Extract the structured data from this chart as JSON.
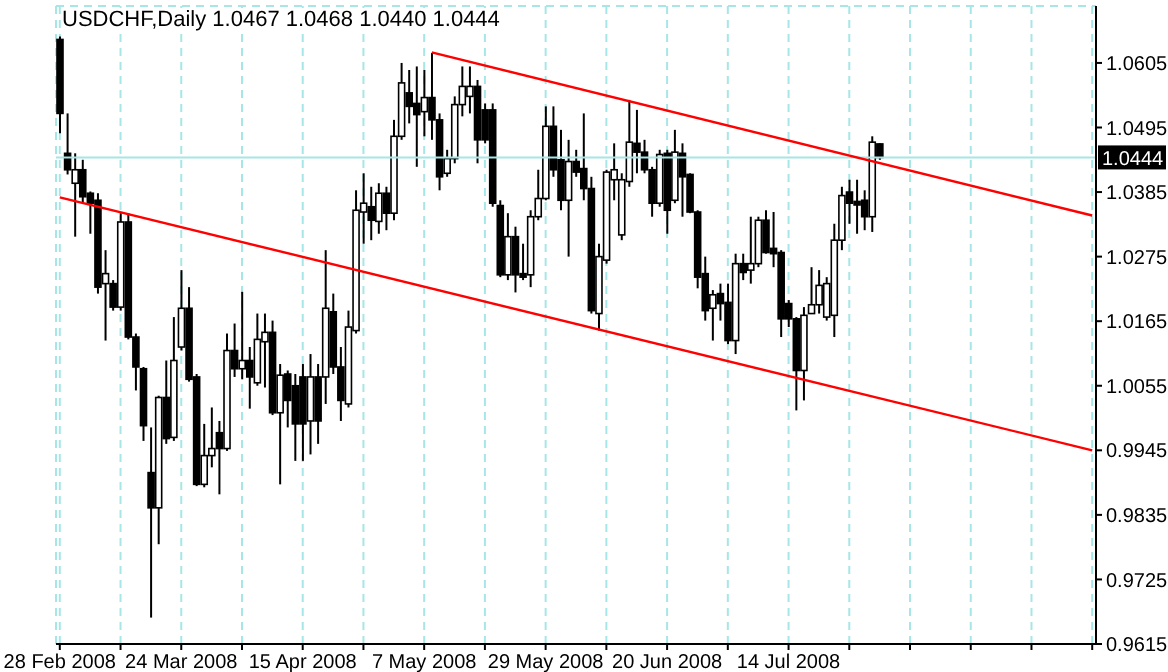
{
  "chart_data": {
    "type": "candlestick",
    "title": "USDCHF,Daily 1.0467 1.0468 1.0440 1.0444",
    "categories": [
      "28 Feb 2008",
      null,
      null,
      null,
      null,
      null,
      null,
      null,
      null,
      null,
      null,
      null,
      null,
      null,
      null,
      null,
      "24 Mar 2008",
      null,
      null,
      null,
      null,
      null,
      null,
      null,
      null,
      null,
      null,
      null,
      null,
      null,
      null,
      null,
      "15 Apr 2008",
      null,
      null,
      null,
      null,
      null,
      null,
      null,
      null,
      null,
      null,
      null,
      null,
      null,
      null,
      null,
      "7 May 2008",
      null,
      null,
      null,
      null,
      null,
      null,
      null,
      null,
      null,
      null,
      null,
      null,
      null,
      null,
      null,
      "29 May 2008",
      null,
      null,
      null,
      null,
      null,
      null,
      null,
      null,
      null,
      null,
      null,
      null,
      null,
      null,
      null,
      "20 Jun 2008",
      null,
      null,
      null,
      null,
      null,
      null,
      null,
      null,
      null,
      null,
      null,
      null,
      null,
      null,
      null,
      "14 Jul 2008",
      null,
      null,
      null,
      null,
      null,
      null,
      null,
      null,
      null,
      null,
      null,
      null,
      null,
      null,
      null,
      null,
      null,
      null,
      null,
      null,
      null,
      null,
      null,
      null,
      null,
      null,
      null,
      null,
      null,
      null,
      null,
      null,
      null,
      null,
      null,
      null,
      null,
      null,
      null,
      null
    ],
    "ohlc": [
      [
        1.0645,
        1.065,
        1.0485,
        1.0519
      ],
      [
        1.0451,
        1.0519,
        1.0415,
        1.0423
      ],
      [
        1.04,
        1.0451,
        1.0309,
        1.0423
      ],
      [
        1.0423,
        1.044,
        1.0366,
        1.0377
      ],
      [
        1.0383,
        1.0386,
        1.0314,
        1.0366
      ],
      [
        1.0371,
        1.0383,
        1.0212,
        1.0223
      ],
      [
        1.0229,
        1.0286,
        1.0132,
        1.0246
      ],
      [
        1.0229,
        1.0235,
        1.0183,
        1.0189
      ],
      [
        1.0189,
        1.0349,
        1.0183,
        1.0334
      ],
      [
        1.0334,
        1.0349,
        1.0134,
        1.0138
      ],
      [
        1.0138,
        1.0144,
        1.0047,
        1.0087
      ],
      [
        1.0084,
        1.0087,
        0.9961,
        0.9987
      ],
      [
        0.9907,
        0.9984,
        0.966,
        0.9847
      ],
      [
        0.9847,
        1.0038,
        0.9785,
        1.0035
      ],
      [
        1.0035,
        1.0098,
        0.9956,
        0.9965
      ],
      [
        0.9967,
        1.0172,
        0.9961,
        1.0098
      ],
      [
        1.0121,
        1.0252,
        1.0115,
        1.0187
      ],
      [
        1.0187,
        1.0223,
        1.0062,
        1.0066
      ],
      [
        1.007,
        1.0075,
        0.9884,
        0.9887
      ],
      [
        0.9887,
        0.999,
        0.9882,
        0.9936
      ],
      [
        0.9936,
        1.0018,
        0.9916,
        0.9948
      ],
      [
        0.9975,
        0.9995,
        0.987,
        0.9948
      ],
      [
        0.9948,
        1.0144,
        0.9944,
        1.0115
      ],
      [
        1.0115,
        1.0161,
        1.007,
        1.0084
      ],
      [
        1.0084,
        1.0215,
        1.0066,
        1.0098
      ],
      [
        1.0098,
        1.0121,
        1.0016,
        1.007
      ],
      [
        1.006,
        1.0178,
        1.0055,
        1.0134
      ],
      [
        1.013,
        1.0178,
        1.0052,
        1.0146
      ],
      [
        1.0146,
        1.0166,
        1.0005,
        1.0009
      ],
      [
        1.0009,
        1.0092,
        0.9887,
        1.0073
      ],
      [
        1.0075,
        1.0081,
        0.9984,
        1.003
      ],
      [
        1.0055,
        1.0075,
        0.9927,
        0.999
      ],
      [
        1.007,
        1.0092,
        0.9927,
        0.999
      ],
      [
        0.9995,
        1.0109,
        0.9938,
        1.007
      ],
      [
        1.007,
        1.0092,
        0.9956,
        0.9995
      ],
      [
        1.007,
        1.0286,
        1.0024,
        1.0187
      ],
      [
        1.0181,
        1.0212,
        1.0075,
        1.0087
      ],
      [
        1.0087,
        1.0121,
        0.9995,
        1.003
      ],
      [
        1.0024,
        1.0183,
        1.0018,
        1.0155
      ],
      [
        1.0149,
        1.0388,
        1.0144,
        1.0354
      ],
      [
        1.0351,
        1.0417,
        1.0297,
        1.0366
      ],
      [
        1.036,
        1.0394,
        1.0303,
        1.0337
      ],
      [
        1.0335,
        1.04,
        1.0314,
        1.0383
      ],
      [
        1.0383,
        1.0394,
        1.032,
        1.0349
      ],
      [
        1.0349,
        1.0508,
        1.0337,
        1.048
      ],
      [
        1.048,
        1.0605,
        1.0474,
        1.0571
      ],
      [
        1.0554,
        1.0593,
        1.0502,
        1.0531
      ],
      [
        1.0536,
        1.0599,
        1.0428,
        1.0517
      ],
      [
        1.0522,
        1.0593,
        1.048,
        1.0546
      ],
      [
        1.0546,
        1.0622,
        1.0474,
        1.0508
      ],
      [
        1.0508,
        1.0519,
        1.0388,
        1.0411
      ],
      [
        1.0417,
        1.0457,
        1.0411,
        1.0442
      ],
      [
        1.0442,
        1.0548,
        1.0434,
        1.0534
      ],
      [
        1.0534,
        1.0599,
        1.0514,
        1.0565
      ],
      [
        1.0548,
        1.0599,
        1.0519,
        1.0565
      ],
      [
        1.0565,
        1.0576,
        1.0434,
        1.0474
      ],
      [
        1.0525,
        1.0536,
        1.0468,
        1.0474
      ],
      [
        1.0525,
        1.0536,
        1.036,
        1.0366
      ],
      [
        1.0362,
        1.0371,
        1.024,
        1.0244
      ],
      [
        1.0244,
        1.0349,
        1.0235,
        1.0309
      ],
      [
        1.0309,
        1.0326,
        1.0214,
        1.0244
      ],
      [
        1.0246,
        1.0297,
        1.0235,
        1.024
      ],
      [
        1.0244,
        1.0354,
        1.0223,
        1.0343
      ],
      [
        1.0343,
        1.0423,
        1.0337,
        1.0374
      ],
      [
        1.0374,
        1.0531,
        1.0371,
        1.0497
      ],
      [
        1.0497,
        1.0531,
        1.0411,
        1.0423
      ],
      [
        1.044,
        1.0491,
        1.0354,
        1.0371
      ],
      [
        1.0371,
        1.0474,
        1.0275,
        1.0437
      ],
      [
        1.0437,
        1.0457,
        1.0411,
        1.0419
      ],
      [
        1.0425,
        1.0519,
        1.0371,
        1.0391
      ],
      [
        1.0391,
        1.0411,
        1.0178,
        1.0183
      ],
      [
        1.0178,
        1.0297,
        1.0149,
        1.0275
      ],
      [
        1.0269,
        1.0423,
        1.0263,
        1.0419
      ],
      [
        1.0406,
        1.0468,
        1.0371,
        1.0423
      ],
      [
        1.0312,
        1.0417,
        1.0303,
        1.0406
      ],
      [
        1.0403,
        1.0542,
        1.0394,
        1.047
      ],
      [
        1.0468,
        1.0525,
        1.0417,
        1.0453
      ],
      [
        1.0453,
        1.0474,
        1.0417,
        1.0423
      ],
      [
        1.0423,
        1.0428,
        1.0343,
        1.0366
      ],
      [
        1.0366,
        1.0457,
        1.036,
        1.0449
      ],
      [
        1.0451,
        1.0457,
        1.0314,
        1.0354
      ],
      [
        1.0371,
        1.0491,
        1.0366,
        1.0453
      ],
      [
        1.0451,
        1.0468,
        1.0343,
        1.0411
      ],
      [
        1.0415,
        1.0417,
        1.0349,
        1.0351
      ],
      [
        1.0351,
        1.0354,
        1.0221,
        1.024
      ],
      [
        1.0246,
        1.0275,
        1.0166,
        1.0183
      ],
      [
        1.0187,
        1.0218,
        1.0132,
        1.021
      ],
      [
        1.0212,
        1.0229,
        1.0166,
        1.0195
      ],
      [
        1.0197,
        1.0229,
        1.0126,
        1.0132
      ],
      [
        1.0132,
        1.028,
        1.0109,
        1.0263
      ],
      [
        1.0263,
        1.028,
        1.0235,
        1.0248
      ],
      [
        1.0252,
        1.0343,
        1.0229,
        1.0263
      ],
      [
        1.0263,
        1.0343,
        1.0257,
        1.0337
      ],
      [
        1.0337,
        1.0354,
        1.028,
        1.0282
      ],
      [
        1.0289,
        1.0351,
        1.0257,
        1.028
      ],
      [
        1.0282,
        1.0286,
        1.0138,
        1.0169
      ],
      [
        1.0195,
        1.0201,
        1.0155,
        1.0169
      ],
      [
        1.0169,
        1.0172,
        1.0013,
        1.0081
      ],
      [
        1.0081,
        1.0189,
        1.003,
        1.0175
      ],
      [
        1.0178,
        1.0257,
        1.0178,
        1.0193
      ],
      [
        1.0193,
        1.0252,
        1.0178,
        1.0226
      ],
      [
        1.0172,
        1.024,
        1.0166,
        1.0229
      ],
      [
        1.0175,
        1.0331,
        1.0138,
        1.0303
      ],
      [
        1.0303,
        1.0394,
        1.0286,
        1.0379
      ],
      [
        1.0385,
        1.0406,
        1.0331,
        1.0366
      ],
      [
        1.0369,
        1.0406,
        1.0314,
        1.0363
      ],
      [
        1.0371,
        1.0388,
        1.032,
        1.0343
      ],
      [
        1.0343,
        1.048,
        1.0317,
        1.047
      ],
      [
        1.0467,
        1.0468,
        1.044,
        1.0444
      ],
      null,
      null,
      null,
      null,
      null,
      null,
      null,
      null,
      null,
      null,
      null,
      null,
      null,
      null,
      null,
      null,
      null,
      null,
      null,
      null,
      null,
      null,
      null,
      null,
      null,
      null,
      null,
      null
    ],
    "series": [
      {
        "type": "line",
        "color": "#ff0000",
        "values": [
          1.0376,
          null,
          null,
          null,
          null,
          null,
          null,
          null,
          null,
          null,
          null,
          null,
          null,
          null,
          null,
          null,
          null,
          null,
          null,
          null,
          null,
          null,
          null,
          null,
          null,
          null,
          null,
          null,
          null,
          null,
          null,
          null,
          null,
          null,
          null,
          null,
          null,
          null,
          null,
          null,
          null,
          null,
          null,
          null,
          null,
          null,
          null,
          null,
          null,
          null,
          null,
          null,
          null,
          null,
          null,
          null,
          null,
          null,
          null,
          null,
          null,
          null,
          null,
          null,
          null,
          null,
          null,
          null,
          null,
          null,
          null,
          null,
          null,
          null,
          null,
          null,
          null,
          null,
          null,
          null,
          null,
          null,
          null,
          null,
          null,
          null,
          null,
          null,
          null,
          null,
          null,
          null,
          null,
          null,
          null,
          null,
          null,
          null,
          null,
          null,
          null,
          null,
          null,
          null,
          null,
          null,
          null,
          null,
          null,
          null,
          null,
          null,
          null,
          null,
          null,
          null,
          null,
          null,
          null,
          null,
          null,
          null,
          null,
          null,
          null,
          null,
          null,
          null,
          null,
          null,
          null,
          null,
          null,
          null,
          null,
          null,
          0.9945
        ]
      },
      {
        "type": "line",
        "color": "#ff0000",
        "values": [
          null,
          null,
          null,
          null,
          null,
          null,
          null,
          null,
          null,
          null,
          null,
          null,
          null,
          null,
          null,
          null,
          null,
          null,
          null,
          null,
          null,
          null,
          null,
          null,
          null,
          null,
          null,
          null,
          null,
          null,
          null,
          null,
          null,
          null,
          null,
          null,
          null,
          null,
          null,
          null,
          null,
          null,
          null,
          null,
          null,
          null,
          null,
          null,
          null,
          1.0623,
          null,
          null,
          null,
          null,
          null,
          null,
          null,
          null,
          null,
          null,
          null,
          null,
          null,
          null,
          null,
          null,
          null,
          null,
          null,
          null,
          null,
          null,
          null,
          null,
          null,
          null,
          null,
          null,
          null,
          null,
          null,
          null,
          null,
          null,
          null,
          null,
          null,
          null,
          null,
          null,
          null,
          null,
          null,
          null,
          null,
          null,
          null,
          null,
          null,
          null,
          null,
          null,
          null,
          null,
          null,
          null,
          null,
          null,
          null,
          null,
          null,
          null,
          null,
          null,
          null,
          null,
          null,
          null,
          null,
          null,
          null,
          null,
          null,
          null,
          null,
          null,
          null,
          null,
          null,
          null,
          null,
          null,
          null,
          null,
          null,
          null,
          1.0345
        ]
      }
    ],
    "ylim": [
      0.9615,
      1.0702
    ],
    "yticks": [
      0.9615,
      0.9725,
      0.9835,
      0.9945,
      1.0055,
      1.0165,
      1.0275,
      1.0385,
      1.0495,
      1.0605
    ],
    "ref_lines": [
      {
        "axis": "y",
        "value": 1.0444,
        "label": "1.0444",
        "color": "#a6e6e6"
      }
    ],
    "grid": true
  }
}
